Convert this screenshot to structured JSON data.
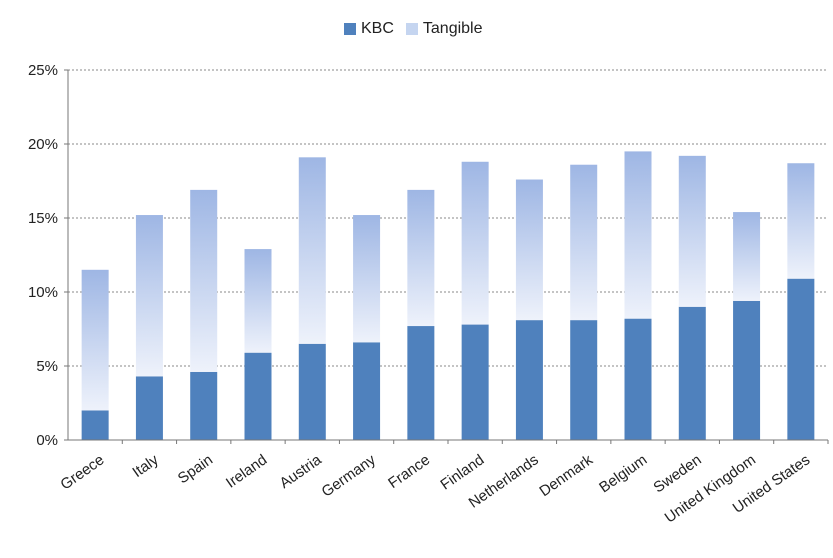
{
  "chart_data": {
    "type": "bar",
    "stacked": true,
    "categories": [
      "Greece",
      "Italy",
      "Spain",
      "Ireland",
      "Austria",
      "Germany",
      "France",
      "Finland",
      "Netherlands",
      "Denmark",
      "Belgium",
      "Sweden",
      "United Kingdom",
      "United States"
    ],
    "series": [
      {
        "name": "KBC",
        "color": "#4f81bd",
        "values": [
          2.0,
          4.3,
          4.6,
          5.9,
          6.5,
          6.6,
          7.7,
          7.8,
          8.1,
          8.1,
          8.2,
          9.0,
          9.4,
          10.9
        ]
      },
      {
        "name": "Tangible",
        "color": "#a9bde6",
        "values": [
          9.5,
          10.9,
          12.3,
          7.0,
          12.6,
          8.6,
          9.2,
          11.0,
          9.5,
          10.5,
          11.3,
          10.2,
          6.0,
          7.8
        ]
      }
    ],
    "yticks": [
      "0%",
      "5%",
      "10%",
      "15%",
      "20%",
      "25%"
    ],
    "ylim": [
      0,
      25
    ],
    "grid": true,
    "legend_position": "top"
  }
}
